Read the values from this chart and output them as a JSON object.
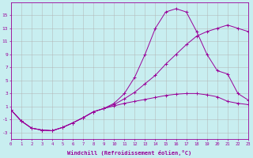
{
  "xlabel": "Windchill (Refroidissement éolien,°C)",
  "bg_color": "#c8eef0",
  "grid_color": "#b0b0b0",
  "line_color": "#990099",
  "x_ticks": [
    0,
    1,
    2,
    3,
    4,
    5,
    6,
    7,
    8,
    9,
    10,
    11,
    12,
    13,
    14,
    15,
    16,
    17,
    18,
    19,
    20,
    21,
    22,
    23
  ],
  "y_ticks": [
    -3,
    -1,
    1,
    3,
    5,
    7,
    9,
    11,
    13,
    15
  ],
  "xlim": [
    0,
    23
  ],
  "ylim": [
    -4.0,
    17.0
  ],
  "curve1_x": [
    0,
    1,
    2,
    3,
    4,
    5,
    6,
    7,
    8,
    9,
    10,
    11,
    12,
    13,
    14,
    15,
    16,
    17,
    18,
    19,
    20,
    21,
    22,
    23
  ],
  "curve1_y": [
    0.5,
    -1.2,
    -2.3,
    -2.6,
    -2.7,
    -2.2,
    -1.5,
    -0.7,
    0.2,
    0.7,
    1.1,
    1.5,
    1.8,
    2.1,
    2.4,
    2.7,
    2.9,
    3.0,
    3.0,
    2.8,
    2.5,
    1.8,
    1.5,
    1.3
  ],
  "curve2_x": [
    0,
    1,
    2,
    3,
    4,
    5,
    6,
    7,
    8,
    9,
    10,
    11,
    12,
    13,
    14,
    15,
    16,
    17,
    18,
    19,
    20,
    21,
    22,
    23
  ],
  "curve2_y": [
    0.5,
    -1.2,
    -2.3,
    -2.6,
    -2.7,
    -2.2,
    -1.5,
    -0.7,
    0.2,
    0.7,
    1.3,
    2.2,
    3.2,
    4.5,
    5.8,
    7.5,
    9.0,
    10.5,
    11.8,
    12.5,
    13.0,
    13.5,
    13.0,
    12.5
  ],
  "curve3_x": [
    0,
    1,
    2,
    3,
    4,
    5,
    6,
    7,
    8,
    9,
    10,
    11,
    12,
    13,
    14,
    15,
    16,
    17,
    18,
    19,
    20,
    21,
    22,
    23
  ],
  "curve3_y": [
    0.5,
    -1.2,
    -2.3,
    -2.6,
    -2.7,
    -2.2,
    -1.5,
    -0.7,
    0.2,
    0.7,
    1.5,
    3.0,
    5.5,
    9.0,
    13.0,
    15.5,
    16.0,
    15.5,
    12.5,
    9.0,
    6.5,
    6.0,
    3.0,
    2.0
  ]
}
